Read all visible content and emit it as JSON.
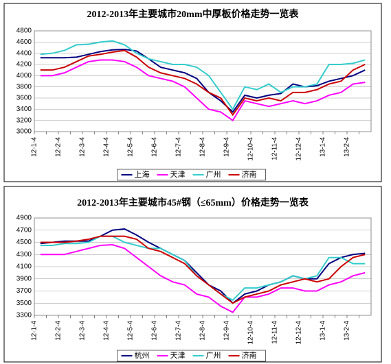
{
  "chart_data": [
    {
      "type": "line",
      "title": "2012-2013年主要城市20mm中厚板价格走势一览表",
      "categories": [
        "12-1-4",
        null,
        "12-2-4",
        null,
        "12-3-4",
        null,
        "12-4-4",
        null,
        "12-5-4",
        null,
        "12-6-4",
        null,
        "12-7-4",
        null,
        "12-8-4",
        null,
        "12-9-4",
        null,
        "12-10-4",
        null,
        "12-11-4",
        null,
        "12-12-4",
        null,
        "13-1-4",
        null,
        "13-2-4",
        null
      ],
      "ylim": [
        3000,
        4800
      ],
      "yticks": [
        3000,
        3200,
        3400,
        3600,
        3800,
        4000,
        4200,
        4400,
        4600,
        4800
      ],
      "grid": true,
      "legend": "bottom",
      "series": [
        {
          "name": "上海",
          "color": "#000080",
          "values": [
            4320,
            4320,
            4320,
            4330,
            4380,
            4430,
            4460,
            4470,
            4440,
            4300,
            4150,
            4100,
            4050,
            3950,
            3700,
            3550,
            3350,
            3650,
            3600,
            3650,
            3680,
            3850,
            3800,
            3820,
            3900,
            3950,
            4000,
            4100
          ]
        },
        {
          "name": "天津",
          "color": "#ff00ff",
          "values": [
            4000,
            4000,
            4050,
            4150,
            4250,
            4280,
            4280,
            4250,
            4150,
            4000,
            3950,
            3900,
            3800,
            3600,
            3400,
            3350,
            3200,
            3550,
            3500,
            3450,
            3500,
            3550,
            3500,
            3550,
            3650,
            3700,
            3850,
            3880
          ]
        },
        {
          "name": "广州",
          "color": "#33cccc",
          "values": [
            4380,
            4400,
            4450,
            4550,
            4560,
            4600,
            4620,
            4550,
            4400,
            4300,
            4250,
            4200,
            4200,
            4150,
            4000,
            3700,
            3400,
            3800,
            3750,
            3850,
            3700,
            3800,
            3800,
            3850,
            4200,
            4200,
            4220,
            4280
          ]
        },
        {
          "name": "济南",
          "color": "#cc0000",
          "values": [
            4100,
            4100,
            4150,
            4250,
            4350,
            4380,
            4420,
            4450,
            4330,
            4150,
            4050,
            4000,
            3950,
            3850,
            3700,
            3600,
            3300,
            3600,
            3550,
            3600,
            3550,
            3700,
            3700,
            3750,
            3850,
            3900,
            4100,
            4200
          ]
        }
      ]
    },
    {
      "type": "line",
      "title": "2012-2013年主要城市45#钢（≤65mm）价格走势一览表",
      "categories": [
        "12-1-4",
        null,
        "12-2-4",
        null,
        "12-3-4",
        null,
        "12-4-4",
        null,
        "12-5-4",
        null,
        "12-6-4",
        null,
        "12-7-4",
        null,
        "12-8-4",
        null,
        "12-9-4",
        null,
        "12-10-4",
        null,
        "12-11-4",
        null,
        "12-12-4",
        null,
        "13-1-4",
        null,
        "13-2-4",
        null
      ],
      "ylim": [
        3300,
        4900
      ],
      "yticks": [
        3300,
        3500,
        3700,
        3900,
        4100,
        4300,
        4500,
        4700,
        4900
      ],
      "grid": true,
      "legend": "bottom",
      "series": [
        {
          "name": "杭州",
          "color": "#000080",
          "values": [
            4480,
            4500,
            4520,
            4520,
            4520,
            4600,
            4700,
            4720,
            4620,
            4500,
            4400,
            4300,
            4200,
            4000,
            3800,
            3700,
            3500,
            3650,
            3700,
            3800,
            3850,
            3950,
            3900,
            3900,
            4150,
            4250,
            4300,
            4320
          ]
        },
        {
          "name": "天津",
          "color": "#ff00ff",
          "values": [
            4300,
            4300,
            4300,
            4350,
            4400,
            4450,
            4460,
            4400,
            4250,
            4100,
            3950,
            3850,
            3800,
            3650,
            3600,
            3450,
            3350,
            3600,
            3600,
            3650,
            3750,
            3750,
            3700,
            3700,
            3800,
            3850,
            3950,
            4000
          ]
        },
        {
          "name": "广州",
          "color": "#33cccc",
          "values": [
            4450,
            4450,
            4480,
            4480,
            4500,
            4600,
            4600,
            4500,
            4450,
            4400,
            4400,
            4300,
            4200,
            3950,
            3800,
            3650,
            3550,
            3750,
            3750,
            3800,
            3850,
            3950,
            3900,
            3950,
            4250,
            4250,
            4150,
            4150
          ]
        },
        {
          "name": "济南",
          "color": "#cc0000",
          "values": [
            4500,
            4500,
            4500,
            4520,
            4550,
            4600,
            4600,
            4600,
            4550,
            4400,
            4350,
            4250,
            4150,
            3950,
            3800,
            3650,
            3500,
            3600,
            3650,
            3700,
            3800,
            3850,
            3900,
            3850,
            3900,
            4100,
            4250,
            4300
          ]
        }
      ]
    }
  ]
}
